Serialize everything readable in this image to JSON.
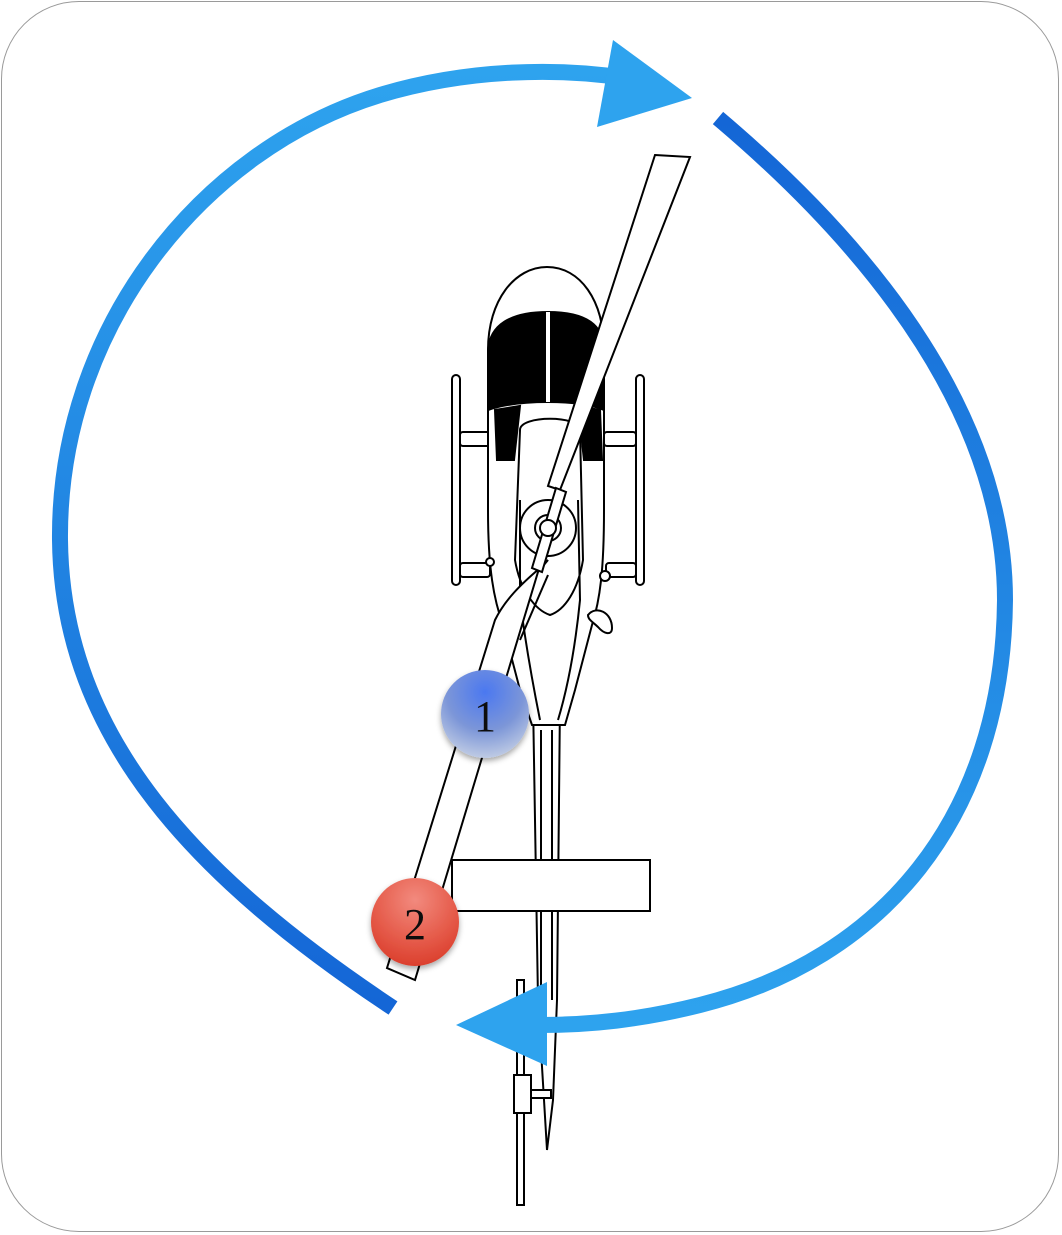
{
  "diagram": {
    "colors": {
      "arrow_light": "#2EA3EE",
      "arrow_dark": "#1466D6",
      "marker_1": "#4B78F0",
      "marker_2": "#E04A3A",
      "outline": "#000000",
      "panel_border": "#9A9A9A"
    },
    "markers": [
      {
        "label": "1",
        "color_name": "blue"
      },
      {
        "label": "2",
        "color_name": "red"
      }
    ]
  }
}
